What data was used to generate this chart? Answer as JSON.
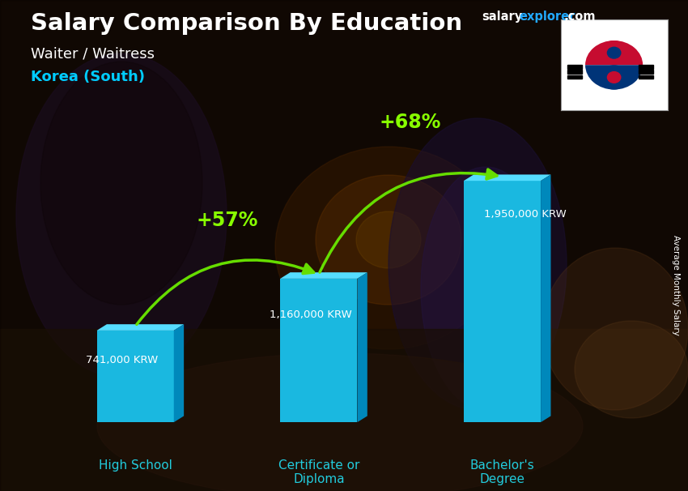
{
  "title_main": "Salary Comparison By Education",
  "title_sub1": "Waiter / Waitress",
  "title_sub2": "Korea (South)",
  "ylabel_text": "Average Monthly Salary",
  "categories": [
    "High School",
    "Certificate or\nDiploma",
    "Bachelor's\nDegree"
  ],
  "values": [
    741000,
    1160000,
    1950000
  ],
  "value_labels": [
    "741,000 KRW",
    "1,160,000 KRW",
    "1,950,000 KRW"
  ],
  "bar_color_face": "#1ab8e0",
  "bar_color_light": "#55ddff",
  "bar_color_side": "#0088bb",
  "pct_labels": [
    "+57%",
    "+68%"
  ],
  "pct_color": "#88ff00",
  "arrow_color": "#66dd00",
  "title_color": "#ffffff",
  "subtitle1_color": "#ffffff",
  "subtitle2_color": "#00ccff",
  "xlabel_color": "#22ccdd",
  "value_label_color": "#ffffff",
  "site_salary_color": "#ffffff",
  "site_explorer_color": "#22aaff",
  "site_com_color": "#ffffff",
  "bg_base": "#1a0e06",
  "ylim_max": 2300000,
  "bar_positions": [
    0,
    1,
    2
  ],
  "bar_width": 0.42,
  "fig_width": 8.5,
  "fig_height": 6.06,
  "fig_dpi": 100
}
